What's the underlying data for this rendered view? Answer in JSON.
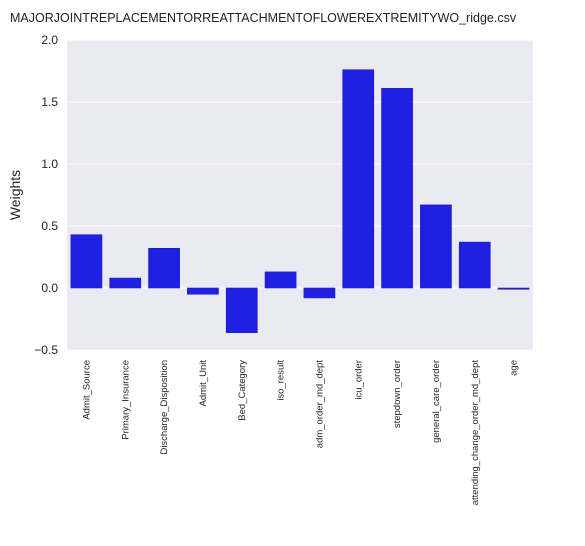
{
  "chart_data": {
    "type": "bar",
    "title": "MAJORJOINTREPLACEMENTORREATTACHMENTOFLOWEREXTREMITYWO_ridge.csv",
    "xlabel": "",
    "ylabel": "Weights",
    "categories": [
      "Admit_Source",
      "Primary_Insurance",
      "Discharge_Disposition",
      "Admit_Unit",
      "Bed_Category",
      "iso_result",
      "adm_order_md_dept",
      "icu_order",
      "stepdown_order",
      "general_care_order",
      "attending_change_order_md_dept",
      "age"
    ],
    "values": [
      0.43,
      0.08,
      0.32,
      -0.05,
      -0.36,
      0.13,
      -0.08,
      1.76,
      1.61,
      0.67,
      0.37,
      -0.01
    ],
    "ylim": [
      -0.5,
      2.0
    ],
    "yticks": [
      -0.5,
      0.0,
      0.5,
      1.0,
      1.5,
      2.0
    ],
    "ytick_labels": [
      "−0.5",
      "0.0",
      "0.5",
      "1.0",
      "1.5",
      "2.0"
    ],
    "grid": true,
    "colors": {
      "bar": "#2020e4",
      "bar_edge": "#1a1ab0",
      "plot_background": "#eaeaf2",
      "grid": "#ffffff"
    }
  }
}
